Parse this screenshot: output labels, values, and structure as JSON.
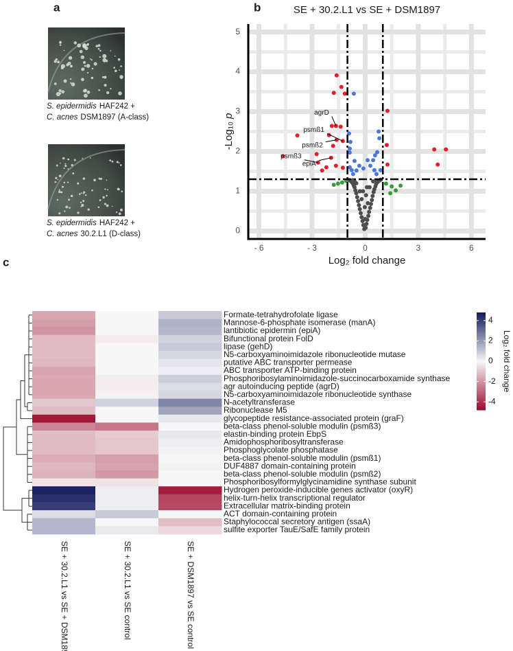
{
  "panel_labels": [
    "a",
    "b",
    "c"
  ],
  "panel_a": {
    "captions": [
      [
        {
          "species": "S. epidermidis",
          "strain": "HAF242 +"
        },
        {
          "species": "C. acnes",
          "strain": "DSM1897 (A-class)"
        }
      ],
      [
        {
          "species": "S. epidermidis",
          "strain": "HAF242 +"
        },
        {
          "species": "C. acnes",
          "strain": "30.2.L1 (D-class)"
        }
      ]
    ]
  },
  "chart_data": [
    {
      "type": "scatter",
      "title": "SE + 30.2.L1 vs SE + DSM1897",
      "xlabel": "Log₂ fold change",
      "ylabel": [
        "-Log₁₀",
        "p"
      ],
      "xlim": [
        -6.6,
        6.8
      ],
      "ylim": [
        -0.2,
        5.2
      ],
      "xticks": [
        {
          "value": -6,
          "label": "- 6"
        },
        {
          "value": -3,
          "label": "- 3"
        },
        0,
        3,
        6
      ],
      "yticks": [
        0,
        1,
        2,
        3,
        4,
        5
      ],
      "grid": true,
      "thresholds": {
        "x": [
          -1,
          1
        ],
        "y": 1.3
      },
      "series": [
        {
          "color": "#4d4d4d",
          "x": [
            -0.05,
            0.03,
            -0.1,
            0.08,
            -0.15,
            0.12,
            -0.2,
            0.18,
            -0.25,
            0.22,
            -0.3,
            0.28,
            -0.35,
            0.33,
            -0.4,
            0.38,
            -0.45,
            0.42,
            -0.5,
            0.48,
            -0.55,
            0.52,
            -0.6,
            0.58,
            -0.65,
            0.62,
            -0.7,
            0.68,
            -0.75,
            0.72,
            -0.8,
            0.78,
            -0.85,
            0.82,
            -0.9,
            0.88,
            0,
            -0.02,
            0.05,
            -0.12,
            0.1,
            -0.3,
            0.25,
            -0.5,
            0.45,
            -0.7,
            0.65,
            -0.2,
            0.15,
            -0.6
          ],
          "values": [
            0.05,
            0.08,
            0.15,
            0.18,
            0.25,
            0.28,
            0.35,
            0.38,
            0.45,
            0.48,
            0.55,
            0.58,
            0.65,
            0.68,
            0.75,
            0.78,
            0.85,
            0.88,
            0.95,
            0.98,
            1.02,
            1.05,
            1.1,
            1.12,
            1.15,
            1.18,
            1.2,
            1.22,
            1.23,
            1.24,
            1.25,
            1.26,
            1.27,
            1.28,
            1.28,
            1.29,
            0.3,
            0.6,
            0.9,
            1.0,
            1.1,
            1.0,
            1.1,
            1.2,
            1.25,
            1.28,
            1.27,
            0.8,
            0.7,
            1.25
          ]
        },
        {
          "color": "#3a9a3a",
          "x": [
            -1.77,
            -1.53,
            -1.3,
            -1.07,
            1.18,
            1.5,
            1.73,
            2.0,
            1.42
          ],
          "values": [
            1.16,
            1.19,
            1.22,
            1.26,
            1.19,
            1.12,
            1.02,
            1.14,
            0.95
          ]
        },
        {
          "color": "#4a78d8",
          "x": [
            -0.64,
            -0.91,
            -0.83,
            -0.87,
            -0.87,
            -0.6,
            -0.87,
            -0.76,
            -0.49,
            -0.33,
            -0.1,
            0.14,
            0.29,
            0.52,
            0.76,
            0.8,
            0.68,
            0.45,
            0.56,
            0.87,
            -0.68,
            0.64
          ],
          "values": [
            3.45,
            2.45,
            2.24,
            2.07,
            1.97,
            1.76,
            1.6,
            1.53,
            1.52,
            1.64,
            1.57,
            1.78,
            1.64,
            1.53,
            2.5,
            2.33,
            1.98,
            1.78,
            1.9,
            1.53,
            1.43,
            1.43
          ]
        },
        {
          "color": "#e3202a",
          "x": [
            -1.61,
            -1.34,
            -1.15,
            -1.77,
            -4.64,
            -3.83,
            -2.74,
            -2.66,
            -1.88,
            -1.65,
            -1.38,
            -2.04,
            -1.61,
            -1.81,
            -1.26,
            -1.92,
            -1.65,
            -2.19,
            -2.43,
            -1.26,
            1.26,
            1.26,
            1.22,
            3.9,
            4.56,
            4.1
          ],
          "values": [
            3.91,
            3.62,
            3.45,
            3.47,
            1.88,
            2.4,
            1.93,
            1.72,
            2.64,
            2.64,
            2.62,
            2.41,
            2.29,
            2.14,
            2.26,
            1.84,
            1.64,
            1.6,
            1.52,
            1.59,
            3.02,
            1.67,
            2.16,
            2.05,
            2.05,
            1.67
          ]
        }
      ],
      "annotations": [
        {
          "text": "agrD",
          "x": -1.65,
          "y": 2.64
        },
        {
          "text": "psmß1",
          "x": -1.26,
          "y": 2.26
        },
        {
          "text": "psmß2",
          "x": -1.61,
          "y": 2.29
        },
        {
          "text": "psmß3",
          "x": -2.66,
          "y": 1.72
        },
        {
          "text": "epiA",
          "x": -1.92,
          "y": 1.84
        }
      ]
    },
    {
      "type": "heatmap",
      "rows": [
        "Formate-tetrahydrofolate ligase",
        "Mannose-6-phosphate isomerase (manA)",
        "lantibiotic epidermin (epiA)",
        "Bifunctional protein FolD",
        "lipase (gehD)",
        "N5-carboxyaminoimidazole ribonucleotide mutase",
        "putative ABC transporter permease",
        "ABC transporter ATP-binding protein",
        "Phosphoribosylaminoimidazole-succinocarboxamide synthase",
        "agr autoinducing peptide (agrD)",
        "N5-carboxyaminoimidazole ribonucleotide synthase",
        "N-acetyltransferase",
        "Ribonuclease M5",
        "glycopeptide resistance-associated protein (graF)",
        "beta-class phenol-soluble modulin (psmß3)",
        "elastin-binding protein EbpS",
        "Amidophosphoribosyltransferase",
        "Phosphoglycolate phosphatase",
        "beta-class phenol-soluble modulin (psmß1)",
        "DUF4887 domain-containing protein",
        "beta-class phenol-soluble modulin (psmß2)",
        "Phosphoribosylformylglycinamidine synthase subunit",
        "Hydrogen peroxide-inducible genes activator (oxyR)",
        "helix-turn-helix transcriptional regulator",
        "Extracellular matrix-binding protein",
        "ACT domain-containing protein",
        "Staphylococcal secretory antigen (ssaA)",
        "sulfite exporter TauE/SafE family protein"
      ],
      "columns": [
        "SE + 30.2.L1 vs SE + DSM1897",
        "SE + 30.2.L1 vs SE control",
        "SE + DSM1897 vs SE control"
      ],
      "values": [
        [
          -1.6,
          0,
          1.0
        ],
        [
          -1.8,
          0,
          1.5
        ],
        [
          -2.0,
          0,
          1.4
        ],
        [
          -1.2,
          -0.2,
          0.8
        ],
        [
          -1.2,
          0,
          1.0
        ],
        [
          -1.2,
          0,
          0.7
        ],
        [
          -1.3,
          0,
          0.4
        ],
        [
          -1.7,
          0,
          0.2
        ],
        [
          -1.6,
          -0.2,
          0.9
        ],
        [
          -1.6,
          -0.2,
          0.6
        ],
        [
          -1.6,
          -0.1,
          0.7
        ],
        [
          -1.0,
          0.8,
          2.5
        ],
        [
          -1.2,
          0,
          1.8
        ],
        [
          -4.5,
          0,
          0.3
        ],
        [
          -2.3,
          -2.6,
          0
        ],
        [
          -1.2,
          -0.9,
          0.3
        ],
        [
          -1.2,
          -1.0,
          0.2
        ],
        [
          -1.2,
          -1.0,
          0.1
        ],
        [
          -1.5,
          -1.8,
          0
        ],
        [
          -1.3,
          -1.7,
          0.1
        ],
        [
          -1.4,
          -1.9,
          0
        ],
        [
          -0.4,
          -0.4,
          0
        ],
        [
          4.6,
          0.2,
          -4.4
        ],
        [
          4.3,
          0.2,
          -3.6
        ],
        [
          4.0,
          0.2,
          -3.5
        ],
        [
          0.6,
          1.0,
          0
        ],
        [
          1.4,
          0,
          -1.2
        ],
        [
          1.4,
          0.3,
          -0.6
        ]
      ],
      "colors": {
        "low": "#9c0a2c",
        "mid": "#f7f7f7",
        "high": "#131a5c"
      },
      "clim": [
        -4.8,
        4.8
      ],
      "colorbar_label": "Log₂ fold change",
      "colorbar_ticks": [
        4,
        2,
        0,
        -2,
        -4
      ]
    }
  ]
}
